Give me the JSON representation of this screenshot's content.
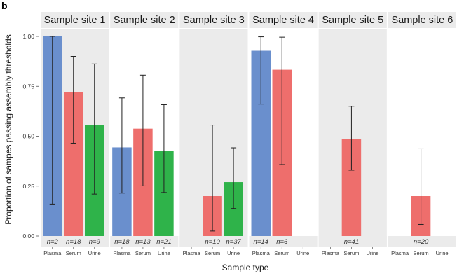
{
  "figure_label": "b",
  "chart_data": {
    "type": "bar",
    "ylabel": "Proportion of sampes passing assembly thresholds",
    "xlabel": "Sample type",
    "ylim": [
      0,
      1
    ],
    "yticks": [
      "0.00",
      "0.25",
      "0.50",
      "0.75",
      "1.00"
    ],
    "categories": [
      "Plasma",
      "Serum",
      "Urine"
    ],
    "colors": {
      "Plasma": "#6a8fcd",
      "Serum": "#ee6e6c",
      "Urine": "#2fb34a",
      "panel_shade": "#ebebeb",
      "error_bar": "#222222"
    },
    "panels": [
      {
        "title": "Sample site 1",
        "shaded": true,
        "bars": [
          {
            "category": "Plasma",
            "value": 1.0,
            "ci": [
              0.16,
              1.0
            ],
            "n": "n=2"
          },
          {
            "category": "Serum",
            "value": 0.72,
            "ci": [
              0.465,
              0.9
            ],
            "n": "n=18"
          },
          {
            "category": "Urine",
            "value": 0.555,
            "ci": [
              0.21,
              0.862
            ],
            "n": "n=9"
          }
        ]
      },
      {
        "title": "Sample site 2",
        "shaded": false,
        "bars": [
          {
            "category": "Plasma",
            "value": 0.444,
            "ci": [
              0.215,
              0.692
            ],
            "n": "n=18"
          },
          {
            "category": "Serum",
            "value": 0.538,
            "ci": [
              0.251,
              0.806
            ],
            "n": "n=13"
          },
          {
            "category": "Urine",
            "value": 0.428,
            "ci": [
              0.218,
              0.658
            ],
            "n": "n=21"
          }
        ]
      },
      {
        "title": "Sample site 3",
        "shaded": true,
        "bars": [
          {
            "category": "Serum",
            "value": 0.2,
            "ci": [
              0.025,
              0.556
            ],
            "n": "n=10"
          },
          {
            "category": "Urine",
            "value": 0.27,
            "ci": [
              0.138,
              0.442
            ],
            "n": "n=37"
          }
        ]
      },
      {
        "title": "Sample site 4",
        "shaded": false,
        "bars": [
          {
            "category": "Plasma",
            "value": 0.928,
            "ci": [
              0.661,
              0.998
            ],
            "n": "n=14"
          },
          {
            "category": "Serum",
            "value": 0.833,
            "ci": [
              0.358,
              0.996
            ],
            "n": "n=6"
          }
        ]
      },
      {
        "title": "Sample site 5",
        "shaded": true,
        "bars": [
          {
            "category": "Serum",
            "value": 0.487,
            "ci": [
              0.33,
              0.65
            ],
            "n": "n=41"
          }
        ]
      },
      {
        "title": "Sample site 6",
        "shaded": false,
        "bars": [
          {
            "category": "Serum",
            "value": 0.2,
            "ci": [
              0.058,
              0.437
            ],
            "n": "n=20"
          }
        ]
      }
    ]
  }
}
